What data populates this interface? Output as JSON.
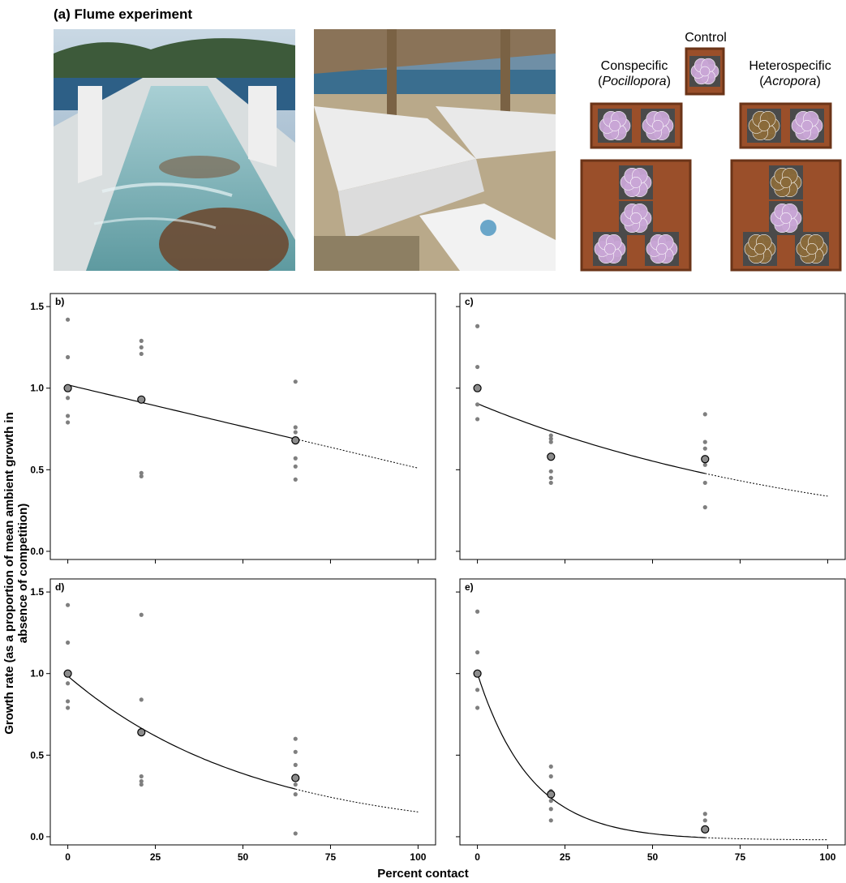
{
  "figure": {
    "panel_a_title": "(a) Flume experiment",
    "diagram": {
      "control": "Control",
      "conspecific_line1": "Conspecific",
      "conspecific_line2": "Pocillopora",
      "heterospecific_line1": "Heterospecific",
      "heterospecific_line2": "Acropora"
    },
    "ylabel": "Growth rate (as a proportion of mean ambient growth in absence of competition)",
    "xlabel": "Percent contact"
  },
  "colors": {
    "plate": "#9a4f2a",
    "plate_edge": "#6b3418",
    "coral_pink": "#c9a6d6",
    "coral_brown": "#8a6a3a",
    "point_small": "#7f7f7f",
    "point_mean": "#8c8c8c"
  },
  "chart_data": [
    {
      "type": "scatter",
      "panel_label": "b)",
      "xlim": [
        -5,
        105
      ],
      "ylim": [
        -0.05,
        1.58
      ],
      "xticks": [
        "0",
        "25",
        "50",
        "75",
        "100"
      ],
      "yticks": [
        "0.0",
        "0.5",
        "1.0",
        "1.5"
      ],
      "show_xticklabels": false,
      "show_yticklabels": true,
      "observations": {
        "x": [
          0,
          0,
          0,
          0,
          0,
          0,
          21,
          21,
          21,
          21,
          21,
          65,
          65,
          65,
          65,
          65,
          65,
          65
        ],
        "y": [
          1.42,
          1.19,
          1.0,
          0.94,
          0.83,
          0.79,
          1.29,
          1.25,
          1.21,
          0.48,
          0.46,
          1.04,
          0.76,
          0.73,
          0.67,
          0.57,
          0.52,
          0.44
        ]
      },
      "means": {
        "x": [
          0,
          21,
          65
        ],
        "y": [
          1.0,
          0.93,
          0.68
        ]
      },
      "fit": {
        "model": "linear",
        "a": 1.02,
        "b": 0.0051,
        "observed_to": 65
      }
    },
    {
      "type": "scatter",
      "panel_label": "c)",
      "xlim": [
        -5,
        105
      ],
      "ylim": [
        -0.05,
        1.58
      ],
      "xticks": [
        "0",
        "25",
        "50",
        "75",
        "100"
      ],
      "yticks": [
        "0.0",
        "0.5",
        "1.0",
        "1.5"
      ],
      "show_xticklabels": false,
      "show_yticklabels": false,
      "observations": {
        "x": [
          0,
          0,
          0,
          0,
          0,
          21,
          21,
          21,
          21,
          21,
          21,
          65,
          65,
          65,
          65,
          65,
          65,
          65
        ],
        "y": [
          1.38,
          1.13,
          1.0,
          0.9,
          0.81,
          0.71,
          0.69,
          0.67,
          0.49,
          0.45,
          0.42,
          0.84,
          0.67,
          0.63,
          0.57,
          0.53,
          0.42,
          0.27
        ]
      },
      "means": {
        "x": [
          0,
          21,
          65
        ],
        "y": [
          1.0,
          0.58,
          0.565
        ]
      },
      "fit": {
        "model": "exponential",
        "a": 0.905,
        "k": 0.00985,
        "observed_to": 65
      }
    },
    {
      "type": "scatter",
      "panel_label": "d)",
      "xlim": [
        -5,
        105
      ],
      "ylim": [
        -0.05,
        1.58
      ],
      "xticks": [
        "0",
        "25",
        "50",
        "75",
        "100"
      ],
      "yticks": [
        "0.0",
        "0.5",
        "1.0",
        "1.5"
      ],
      "show_xticklabels": true,
      "show_yticklabels": true,
      "observations": {
        "x": [
          0,
          0,
          0,
          0,
          0,
          0,
          21,
          21,
          21,
          21,
          21,
          65,
          65,
          65,
          65,
          65,
          65,
          65
        ],
        "y": [
          1.42,
          1.19,
          1.0,
          0.94,
          0.83,
          0.79,
          1.36,
          0.84,
          0.37,
          0.34,
          0.32,
          0.6,
          0.52,
          0.44,
          0.37,
          0.32,
          0.26,
          0.02
        ]
      },
      "means": {
        "x": [
          0,
          21,
          65
        ],
        "y": [
          1.0,
          0.64,
          0.36
        ]
      },
      "fit": {
        "model": "exponential",
        "a": 0.985,
        "k": 0.0187,
        "observed_to": 65
      }
    },
    {
      "type": "scatter",
      "panel_label": "e)",
      "xlim": [
        -5,
        105
      ],
      "ylim": [
        -0.05,
        1.58
      ],
      "xticks": [
        "0",
        "25",
        "50",
        "75",
        "100"
      ],
      "yticks": [
        "0.0",
        "0.5",
        "1.0",
        "1.5"
      ],
      "show_xticklabels": true,
      "show_yticklabels": false,
      "observations": {
        "x": [
          0,
          0,
          0,
          0,
          0,
          21,
          21,
          21,
          21,
          21,
          21,
          65,
          65,
          65
        ],
        "y": [
          1.38,
          1.13,
          1.0,
          0.9,
          0.79,
          0.43,
          0.37,
          0.28,
          0.22,
          0.17,
          0.1,
          0.14,
          0.1,
          0.05
        ]
      },
      "means": {
        "x": [
          0,
          21,
          65
        ],
        "y": [
          1.0,
          0.26,
          0.045
        ]
      },
      "fit": {
        "model": "exponential_offset",
        "a": 1.0,
        "k": 0.0655,
        "c": -0.02,
        "observed_to": 65
      }
    }
  ]
}
